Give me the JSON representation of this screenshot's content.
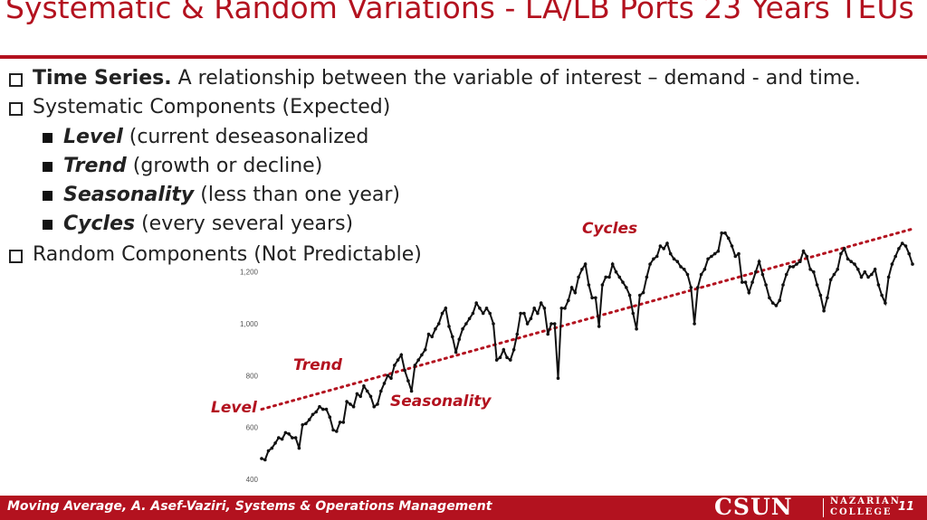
{
  "slide": {
    "title": "Systematic & Random Variations - LA/LB Ports 23 Years TEUs",
    "bullets": [
      {
        "level": 1,
        "bold": "Time Series.",
        "text": " A relationship between the variable of interest – demand - and time."
      },
      {
        "level": 1,
        "bold": "",
        "text": "Systematic Components (Expected)"
      },
      {
        "level": 2,
        "bold": "Level",
        "text": " (current deseasonalized"
      },
      {
        "level": 2,
        "bold": "Trend",
        "text": " (growth or decline)"
      },
      {
        "level": 2,
        "bold": "Seasonality",
        "text": " (less than one year)"
      },
      {
        "level": 2,
        "bold": "Cycles",
        "text": " (every several years)"
      },
      {
        "level": 1,
        "bold": "",
        "text": "Random Components (Not Predictable)"
      }
    ],
    "footer": "Moving Average, A. Asef-Vaziri, Systems & Operations Management",
    "logo": {
      "main": "CSUN",
      "line1": "NAZARIAN",
      "line2": "COLLEGE"
    },
    "page_number": "11"
  },
  "colors": {
    "accent": "#b3121f",
    "series": "#111111",
    "trend": "#b3121f"
  },
  "chart_data": {
    "type": "line",
    "title": "",
    "xlabel": "",
    "ylabel": "",
    "ylim": [
      400,
      1300
    ],
    "yticks": [
      400,
      600,
      800,
      1000,
      1200
    ],
    "ytick_labels": [
      "400",
      "600",
      "800",
      "1,000",
      "1,200"
    ],
    "grid": false,
    "series": [
      {
        "values": [
          480,
          475,
          510,
          520,
          540,
          560,
          555,
          580,
          575,
          560,
          560,
          520,
          610,
          615,
          630,
          650,
          660,
          680,
          670,
          670,
          640,
          590,
          585,
          620,
          620,
          700,
          690,
          680,
          730,
          720,
          760,
          740,
          720,
          680,
          690,
          740,
          770,
          800,
          790,
          840,
          860,
          880,
          820,
          780,
          740,
          840,
          860,
          880,
          900,
          960,
          950,
          980,
          1000,
          1040,
          1060,
          990,
          950,
          890,
          940,
          980,
          1000,
          1020,
          1040,
          1080,
          1060,
          1040,
          1060,
          1040,
          1000,
          860,
          870,
          900,
          870,
          860,
          900,
          960,
          1040,
          1040,
          1000,
          1020,
          1060,
          1040,
          1080,
          1060,
          960,
          1000,
          1000,
          790,
          1060,
          1060,
          1090,
          1140,
          1120,
          1180,
          1210,
          1230,
          1150,
          1100,
          1100,
          990,
          1150,
          1180,
          1180,
          1230,
          1200,
          1180,
          1160,
          1140,
          1110,
          1040,
          980,
          1110,
          1120,
          1180,
          1230,
          1250,
          1260,
          1300,
          1290,
          1310,
          1270,
          1250,
          1240,
          1220,
          1210,
          1190,
          1140,
          1000,
          1140,
          1190,
          1210,
          1250,
          1260,
          1270,
          1280,
          1350,
          1350,
          1330,
          1300,
          1260,
          1270,
          1160,
          1160,
          1120,
          1160,
          1200,
          1240,
          1190,
          1150,
          1100,
          1080,
          1070,
          1090,
          1150,
          1190,
          1220,
          1220,
          1230,
          1240,
          1280,
          1260,
          1210,
          1200,
          1150,
          1110,
          1050,
          1100,
          1170,
          1190,
          1210,
          1270,
          1290,
          1250,
          1240,
          1230,
          1210,
          1180,
          1200,
          1180,
          1190,
          1210,
          1150,
          1110,
          1080,
          1180,
          1230,
          1260,
          1290,
          1310,
          1300,
          1270,
          1230
        ]
      }
    ],
    "annotations": [
      "Level",
      "Trend",
      "Seasonality",
      "Cycles"
    ]
  }
}
